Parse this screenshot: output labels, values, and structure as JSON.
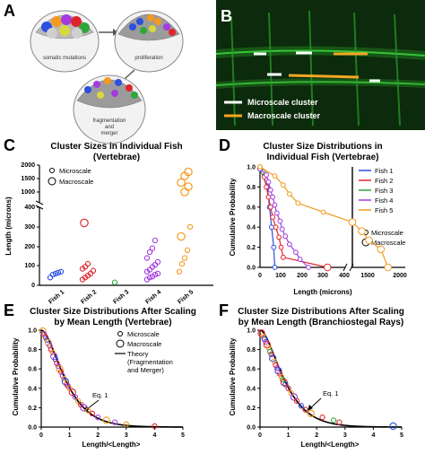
{
  "panel_labels": {
    "a": "A",
    "b": "B",
    "c": "C",
    "d": "D",
    "e": "E",
    "f": "F"
  },
  "schematic": {
    "step1": "somatic mutations",
    "step2": "proliferation",
    "step3_lines": [
      "fragmentation",
      "and",
      "merger"
    ]
  },
  "micrograph": {
    "legend_white": "Microscale cluster",
    "legend_orange": "Macroscale cluster",
    "white": "#ffffff",
    "orange": "#f5a623",
    "background": "#0c2a0c"
  },
  "colors": {
    "fish1": "#2c4fe0",
    "fish2": "#e0242b",
    "fish3": "#2ea63a",
    "fish4": "#a23be0",
    "fish5": "#f39a1e",
    "theory": "#000000"
  },
  "chart_data": [
    {
      "panel": "C",
      "type": "scatter",
      "title_lines": [
        "Cluster Sizes in Individual Fish",
        "(Vertebrae)"
      ],
      "ylabel": "Length (microns)",
      "categories": [
        "Fish 1",
        "Fish 2",
        "Fish 3",
        "Fish 4",
        "Fish 5"
      ],
      "y_ticks_bottom": [
        "0",
        "100",
        "200",
        "300",
        "400"
      ],
      "y_ticks_top": [
        "1000",
        "1500",
        "2000"
      ],
      "legend": {
        "micro": "Microscale",
        "macro": "Macroscale"
      },
      "series": [
        {
          "name": "Fish 1",
          "micro": [
            40,
            55,
            60,
            65,
            70
          ],
          "macro": []
        },
        {
          "name": "Fish 2",
          "micro": [
            30,
            40,
            50,
            60,
            75,
            85,
            95,
            110
          ],
          "macro": [
            320
          ]
        },
        {
          "name": "Fish 3",
          "micro": [
            15
          ],
          "macro": []
        },
        {
          "name": "Fish 4",
          "micro": [
            30,
            40,
            45,
            55,
            60,
            70,
            80,
            95,
            105,
            120,
            140,
            170,
            190,
            230
          ],
          "macro": []
        },
        {
          "name": "Fish 5",
          "micro": [
            70,
            110,
            140,
            180,
            300
          ],
          "macro": [
            250,
            1000,
            1200,
            1350,
            1600,
            1750
          ]
        }
      ]
    },
    {
      "panel": "D",
      "type": "line",
      "title_lines": [
        "Cluster Size Distributions in",
        "Individual Fish (Vertebrae)"
      ],
      "xlabel": "Length (microns)",
      "ylabel": "Cumulative Probability",
      "x_ticks_left": [
        "0",
        "100",
        "200",
        "300",
        "400"
      ],
      "x_ticks_right": [
        "1500",
        "2000"
      ],
      "y_ticks": [
        "0.0",
        "0.2",
        "0.4",
        "0.6",
        "0.8",
        "1.0"
      ],
      "legend": {
        "micro": "Microscale",
        "macro": "Macroscale"
      },
      "series": [
        {
          "name": "Fish 1",
          "x": [
            0,
            35,
            45,
            55,
            65,
            70
          ],
          "y": [
            0.98,
            0.8,
            0.6,
            0.4,
            0.2,
            0
          ]
        },
        {
          "name": "Fish 2",
          "x": [
            0,
            20,
            30,
            40,
            50,
            60,
            75,
            90,
            100,
            110,
            320
          ],
          "y": [
            0.99,
            0.9,
            0.8,
            0.7,
            0.6,
            0.5,
            0.4,
            0.3,
            0.2,
            0.1,
            0
          ]
        },
        {
          "name": "Fish 3",
          "x": [
            0,
            15
          ],
          "y": [
            1.0,
            0.95
          ]
        },
        {
          "name": "Fish 4",
          "x": [
            0,
            30,
            40,
            50,
            60,
            70,
            80,
            95,
            105,
            120,
            140,
            170,
            190,
            230
          ],
          "y": [
            0.98,
            0.92,
            0.85,
            0.77,
            0.7,
            0.62,
            0.54,
            0.46,
            0.38,
            0.31,
            0.23,
            0.15,
            0.08,
            0
          ]
        },
        {
          "name": "Fish 5",
          "x": [
            0,
            70,
            110,
            140,
            180,
            300,
            1000,
            1200,
            1350,
            1600,
            1750
          ],
          "y": [
            1.0,
            0.91,
            0.82,
            0.73,
            0.64,
            0.55,
            0.45,
            0.36,
            0.27,
            0.18,
            0
          ]
        }
      ]
    },
    {
      "panel": "E",
      "type": "scatter",
      "title_lines": [
        "Cluster Size Distributions After Scaling",
        "by Mean Length (Vertebrae)"
      ],
      "xlabel": "Length/<Length>",
      "ylabel": "Cumulative Probability",
      "x_ticks": [
        "0",
        "1",
        "2",
        "3",
        "4",
        "5"
      ],
      "y_ticks": [
        "0.0",
        "0.2",
        "0.4",
        "0.6",
        "0.8",
        "1.0"
      ],
      "legend": {
        "micro": "Microscale",
        "macro": "Macroscale",
        "theory_lines": [
          "Theory",
          "(Fragmentation",
          "and Merger)"
        ]
      },
      "annotation": "Eq. 1",
      "theory_curve": "(1 + 2x) * exp(-2x)",
      "points": [
        {
          "x": 0.05,
          "y": 0.99,
          "s": "Fish 5"
        },
        {
          "x": 0.1,
          "y": 0.96,
          "s": "Fish 4"
        },
        {
          "x": 0.15,
          "y": 0.93,
          "s": "Fish 2"
        },
        {
          "x": 0.2,
          "y": 0.9,
          "s": "Fish 1"
        },
        {
          "x": 0.25,
          "y": 0.87,
          "s": "Fish 5"
        },
        {
          "x": 0.3,
          "y": 0.84,
          "s": "Fish 4"
        },
        {
          "x": 0.35,
          "y": 0.8,
          "s": "Fish 2"
        },
        {
          "x": 0.4,
          "y": 0.77,
          "s": "Fish 5"
        },
        {
          "x": 0.45,
          "y": 0.73,
          "s": "Fish 4"
        },
        {
          "x": 0.5,
          "y": 0.7,
          "s": "Fish 1"
        },
        {
          "x": 0.55,
          "y": 0.66,
          "s": "Fish 2"
        },
        {
          "x": 0.6,
          "y": 0.63,
          "s": "Fish 4"
        },
        {
          "x": 0.65,
          "y": 0.6,
          "s": "Fish 5"
        },
        {
          "x": 0.7,
          "y": 0.57,
          "s": "Fish 2"
        },
        {
          "x": 0.75,
          "y": 0.53,
          "s": "Fish 4"
        },
        {
          "x": 0.8,
          "y": 0.5,
          "s": "Fish 5"
        },
        {
          "x": 0.85,
          "y": 0.47,
          "s": "Fish 1"
        },
        {
          "x": 0.9,
          "y": 0.44,
          "s": "Fish 2"
        },
        {
          "x": 0.95,
          "y": 0.42,
          "s": "Fish 4"
        },
        {
          "x": 1.0,
          "y": 0.4,
          "s": "Fish 5"
        },
        {
          "x": 1.1,
          "y": 0.36,
          "s": "Fish 2"
        },
        {
          "x": 1.2,
          "y": 0.31,
          "s": "Fish 4"
        },
        {
          "x": 1.3,
          "y": 0.27,
          "s": "Fish 5"
        },
        {
          "x": 1.4,
          "y": 0.23,
          "s": "Fish 2"
        },
        {
          "x": 1.5,
          "y": 0.2,
          "s": "Fish 4"
        },
        {
          "x": 1.65,
          "y": 0.17,
          "s": "Fish 5"
        },
        {
          "x": 1.8,
          "y": 0.14,
          "s": "Fish 2"
        },
        {
          "x": 2.0,
          "y": 0.1,
          "s": "Fish 4"
        },
        {
          "x": 2.3,
          "y": 0.07,
          "s": "Fish 5"
        },
        {
          "x": 2.6,
          "y": 0.05,
          "s": "Fish 4"
        },
        {
          "x": 3.0,
          "y": 0.03,
          "s": "Fish 5"
        },
        {
          "x": 4.0,
          "y": 0.01,
          "s": "Fish 2"
        }
      ]
    },
    {
      "panel": "F",
      "type": "scatter",
      "title_lines": [
        "Cluster Size Distributions After Scaling",
        "by Mean Length (Branchiostegal Rays)"
      ],
      "xlabel": "Length/<Length>",
      "ylabel": "Cumulative Probability",
      "x_ticks": [
        "0",
        "1",
        "2",
        "3",
        "4",
        "5"
      ],
      "y_ticks": [
        "0.0",
        "0.2",
        "0.4",
        "0.6",
        "0.8",
        "1.0"
      ],
      "annotation": "Eq. 1",
      "theory_curve": "(1 + 2x) * exp(-2x)",
      "points": [
        {
          "x": 0.05,
          "y": 0.97,
          "s": "Fish 2"
        },
        {
          "x": 0.1,
          "y": 0.94,
          "s": "Fish 5"
        },
        {
          "x": 0.15,
          "y": 0.91,
          "s": "Fish 1"
        },
        {
          "x": 0.2,
          "y": 0.88,
          "s": "Fish 4"
        },
        {
          "x": 0.25,
          "y": 0.85,
          "s": "Fish 2"
        },
        {
          "x": 0.3,
          "y": 0.82,
          "s": "Fish 5"
        },
        {
          "x": 0.35,
          "y": 0.78,
          "s": "Fish 3"
        },
        {
          "x": 0.4,
          "y": 0.75,
          "s": "Fish 2"
        },
        {
          "x": 0.45,
          "y": 0.71,
          "s": "Fish 1"
        },
        {
          "x": 0.5,
          "y": 0.68,
          "s": "Fish 5"
        },
        {
          "x": 0.55,
          "y": 0.64,
          "s": "Fish 2"
        },
        {
          "x": 0.6,
          "y": 0.61,
          "s": "Fish 4"
        },
        {
          "x": 0.65,
          "y": 0.58,
          "s": "Fish 1"
        },
        {
          "x": 0.7,
          "y": 0.55,
          "s": "Fish 2"
        },
        {
          "x": 0.75,
          "y": 0.52,
          "s": "Fish 5"
        },
        {
          "x": 0.8,
          "y": 0.49,
          "s": "Fish 3"
        },
        {
          "x": 0.85,
          "y": 0.46,
          "s": "Fish 2"
        },
        {
          "x": 0.9,
          "y": 0.44,
          "s": "Fish 1"
        },
        {
          "x": 1.0,
          "y": 0.4,
          "s": "Fish 2"
        },
        {
          "x": 1.1,
          "y": 0.35,
          "s": "Fish 5"
        },
        {
          "x": 1.2,
          "y": 0.31,
          "s": "Fish 4"
        },
        {
          "x": 1.3,
          "y": 0.27,
          "s": "Fish 2"
        },
        {
          "x": 1.45,
          "y": 0.22,
          "s": "Fish 1"
        },
        {
          "x": 1.6,
          "y": 0.18,
          "s": "Fish 2"
        },
        {
          "x": 1.8,
          "y": 0.14,
          "s": "Fish 5"
        },
        {
          "x": 2.2,
          "y": 0.1,
          "s": "Fish 2"
        },
        {
          "x": 2.6,
          "y": 0.07,
          "s": "Fish 3"
        },
        {
          "x": 2.8,
          "y": 0.05,
          "s": "Fish 2"
        },
        {
          "x": 4.7,
          "y": 0.01,
          "s": "Fish 1"
        }
      ]
    }
  ]
}
